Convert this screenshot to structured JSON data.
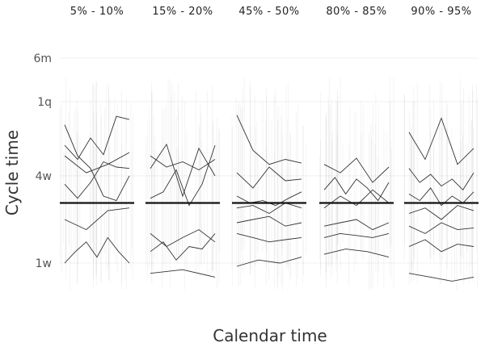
{
  "chart_data": {
    "type": "line",
    "xlabel": "Calendar time",
    "ylabel": "Cycle time",
    "yscale": "log",
    "y_unit": "weeks",
    "y_ticks": [
      {
        "label": "1w",
        "value": 1
      },
      {
        "label": "4w",
        "value": 4
      },
      {
        "label": "1q",
        "value": 13
      },
      {
        "label": "6m",
        "value": 26
      }
    ],
    "ylim": [
      0.75,
      30
    ],
    "reference_line_y": 2.6,
    "panels": [
      {
        "label": "5% - 10%",
        "series": [
          {
            "values": [
              5.5,
              4.2,
              4.8,
              5.8
            ]
          },
          {
            "values": [
              3.5,
              2.8,
              3.6,
              5.0,
              4.6,
              4.5
            ]
          },
          {
            "values": [
              9.0,
              5.5,
              4.5,
              2.9,
              2.7,
              4.0
            ]
          },
          {
            "values": [
              6.5,
              5.2,
              7.3,
              5.6,
              10.3,
              9.8
            ]
          },
          {
            "values": [
              2.0,
              1.7,
              2.3,
              2.4
            ]
          },
          {
            "values": [
              1.0,
              1.2,
              1.4,
              1.1,
              1.5,
              1.2,
              1.0
            ]
          }
        ]
      },
      {
        "label": "15% - 20%",
        "series": [
          {
            "values": [
              5.5,
              4.6,
              5.0,
              4.4,
              5.2
            ]
          },
          {
            "values": [
              2.8,
              3.1,
              4.4,
              2.5,
              3.5,
              6.5
            ]
          },
          {
            "values": [
              4.5,
              6.6,
              2.9,
              6.2,
              4.0
            ]
          },
          {
            "values": [
              1.6,
              1.3,
              1.5,
              1.7,
              1.4
            ]
          },
          {
            "values": [
              1.2,
              1.4,
              1.05,
              1.3,
              1.25,
              1.6
            ]
          },
          {
            "values": [
              0.85,
              0.9,
              0.8
            ]
          }
        ]
      },
      {
        "label": "45% - 50%",
        "series": [
          {
            "values": [
              10.5,
              6.0,
              4.8,
              5.2,
              4.9
            ]
          },
          {
            "values": [
              4.2,
              3.3,
              4.6,
              3.7,
              3.8
            ]
          },
          {
            "values": [
              2.9,
              2.6,
              2.7,
              2.5,
              2.8,
              3.1
            ]
          },
          {
            "values": [
              2.4,
              2.5,
              2.2,
              2.6,
              2.4
            ]
          },
          {
            "values": [
              1.9,
              2.0,
              2.1,
              1.8,
              1.9
            ]
          },
          {
            "values": [
              1.6,
              1.5,
              1.4,
              1.45,
              1.5
            ]
          },
          {
            "values": [
              0.95,
              1.05,
              1.0,
              1.1
            ]
          }
        ]
      },
      {
        "label": "80% - 85%",
        "series": [
          {
            "values": [
              4.8,
              4.2,
              5.3,
              3.6,
              4.6
            ]
          },
          {
            "values": [
              3.2,
              3.9,
              3.0,
              3.8,
              3.3,
              2.7,
              3.6
            ]
          },
          {
            "values": [
              2.4,
              2.9,
              2.5,
              3.2,
              2.6
            ]
          },
          {
            "values": [
              1.8,
              1.9,
              2.0,
              1.7,
              1.9
            ]
          },
          {
            "values": [
              1.5,
              1.6,
              1.55,
              1.5,
              1.6
            ]
          },
          {
            "values": [
              1.15,
              1.25,
              1.2,
              1.1
            ]
          }
        ]
      },
      {
        "label": "90% - 95%",
        "series": [
          {
            "values": [
              8.0,
              5.2,
              10.0,
              4.8,
              6.2
            ]
          },
          {
            "values": [
              4.5,
              3.6,
              4.1,
              3.4,
              3.8,
              3.2,
              4.2
            ]
          },
          {
            "values": [
              3.0,
              2.7,
              3.3,
              2.5,
              2.9,
              2.6,
              3.1
            ]
          },
          {
            "values": [
              2.2,
              2.4,
              2.0,
              2.5,
              2.3
            ]
          },
          {
            "values": [
              1.8,
              1.6,
              1.9,
              1.7,
              1.75
            ]
          },
          {
            "values": [
              1.3,
              1.45,
              1.2,
              1.35,
              1.3
            ]
          },
          {
            "values": [
              0.85,
              0.8,
              0.75,
              0.8
            ]
          }
        ]
      }
    ]
  }
}
